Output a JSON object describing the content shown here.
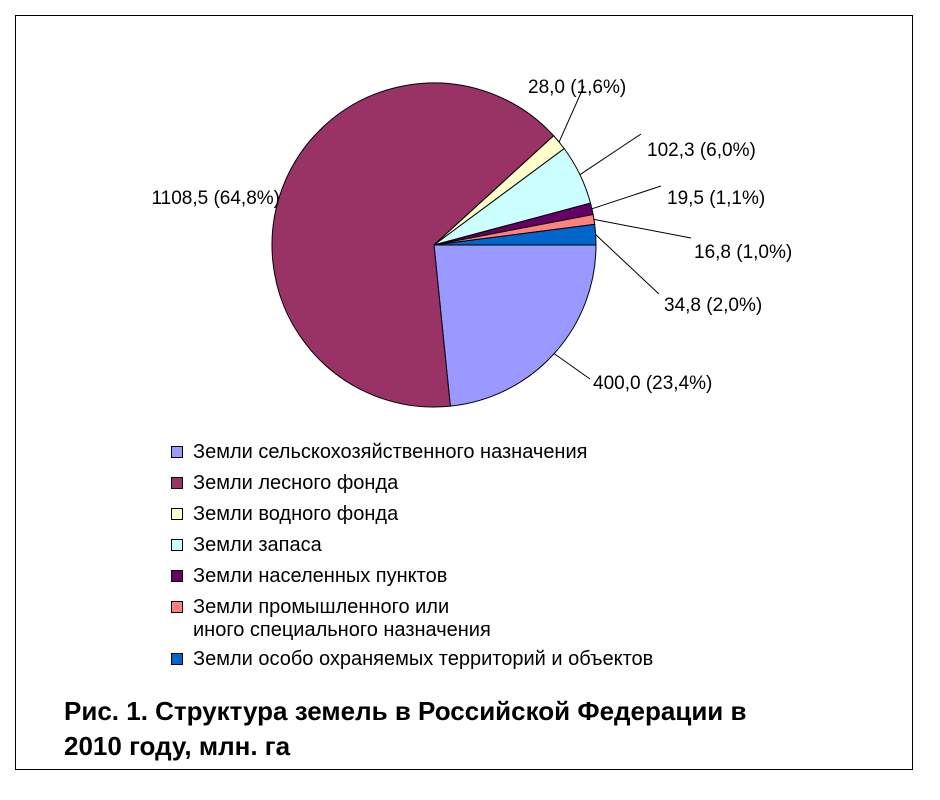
{
  "chart_data": {
    "type": "pie",
    "title": "Рис. 1. Структура земель в Российской Федерации в 2010 году, млн. га",
    "start_angle_deg": 90,
    "direction": "clockwise",
    "legend_position": "bottom",
    "slices": [
      {
        "name": "Земли сельскохозяйственного назначения",
        "value": 400.0,
        "label": "400,0 (23,4%)",
        "color": "#9999ff"
      },
      {
        "name": "Земли лесного фонда",
        "value": 1108.5,
        "label": "1108,5 (64,8%)",
        "color": "#993366"
      },
      {
        "name": "Земли водного фонда",
        "value": 28.0,
        "label": "28,0 (1,6%)",
        "color": "#ffffcc"
      },
      {
        "name": "Земли запаса",
        "value": 102.3,
        "label": "102,3 (6,0%)",
        "color": "#ccffff"
      },
      {
        "name": "Земли населенных пунктов",
        "value": 19.5,
        "label": "19,5 (1,1%)",
        "color": "#660066"
      },
      {
        "name": "Земли промышленного или\nиного специального назначения",
        "value": 16.8,
        "label": "16,8 (1,0%)",
        "color": "#ff8080"
      },
      {
        "name": "Земли особо охраняемых территорий и объектов",
        "value": 34.8,
        "label": "34,8 (2,0%)",
        "color": "#0066cc"
      }
    ]
  },
  "legend": {
    "items": [
      {
        "text": "Земли сельскохозяйственного назначения",
        "color": "#9999ff"
      },
      {
        "text": "Земли лесного фонда",
        "color": "#993366"
      },
      {
        "text": "Земли водного фонда",
        "color": "#ffffcc"
      },
      {
        "text": "Земли запаса",
        "color": "#ccffff"
      },
      {
        "text": "Земли населенных пунктов",
        "color": "#660066"
      },
      {
        "line1": "Земли промышленного или",
        "line2": "иного специального назначения",
        "color": "#ff8080"
      },
      {
        "text": "Земли особо охраняемых территорий и объектов",
        "color": "#0066cc"
      }
    ]
  },
  "caption": {
    "line1": "Рис. 1. Структура земель в Российской Федерации в",
    "line2": "2010 году, млн. га"
  }
}
